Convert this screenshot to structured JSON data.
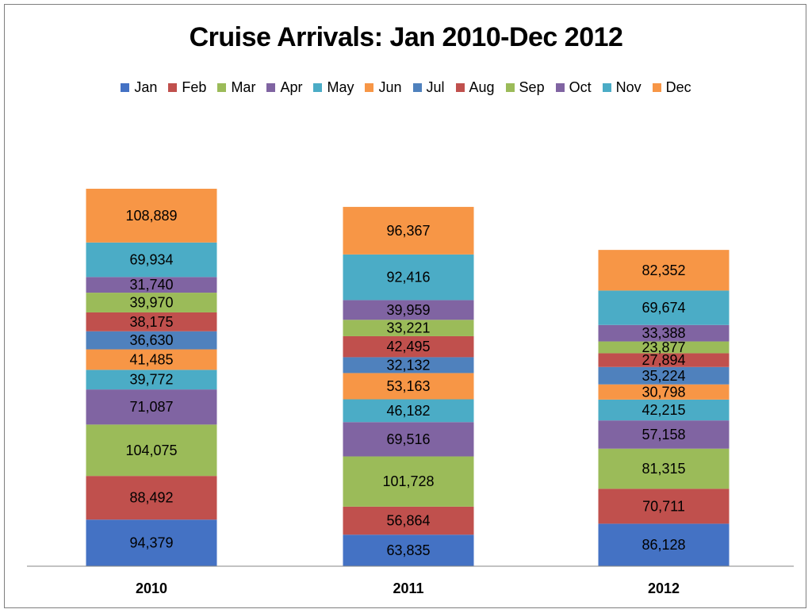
{
  "chart_data": {
    "type": "bar",
    "stacked": true,
    "title": "Cruise Arrivals: Jan 2010-Dec 2012",
    "categories": [
      "2010",
      "2011",
      "2012"
    ],
    "series": [
      {
        "name": "Jan",
        "color": "#4472c4",
        "values": [
          94379,
          63835,
          86128
        ]
      },
      {
        "name": "Feb",
        "color": "#c0504d",
        "values": [
          88492,
          56864,
          70711
        ]
      },
      {
        "name": "Mar",
        "color": "#9bbb59",
        "values": [
          104075,
          101728,
          81315
        ]
      },
      {
        "name": "Apr",
        "color": "#8064a2",
        "values": [
          71087,
          69516,
          57158
        ]
      },
      {
        "name": "May",
        "color": "#4bacc6",
        "values": [
          39772,
          46182,
          42215
        ]
      },
      {
        "name": "Jun",
        "color": "#f79646",
        "values": [
          41485,
          53163,
          30798
        ]
      },
      {
        "name": "Jul",
        "color": "#4f81bd",
        "values": [
          36630,
          32132,
          35224
        ]
      },
      {
        "name": "Aug",
        "color": "#c0504d",
        "values": [
          38175,
          42495,
          27894
        ]
      },
      {
        "name": "Sep",
        "color": "#9bbb59",
        "values": [
          39970,
          33221,
          23877
        ]
      },
      {
        "name": "Oct",
        "color": "#8064a2",
        "values": [
          31740,
          39959,
          33388
        ]
      },
      {
        "name": "Nov",
        "color": "#4bacc6",
        "values": [
          69934,
          92416,
          69674
        ]
      },
      {
        "name": "Dec",
        "color": "#f79646",
        "values": [
          108889,
          96367,
          82352
        ]
      }
    ],
    "legend_position": "top",
    "grid": false,
    "data_labels": true
  }
}
